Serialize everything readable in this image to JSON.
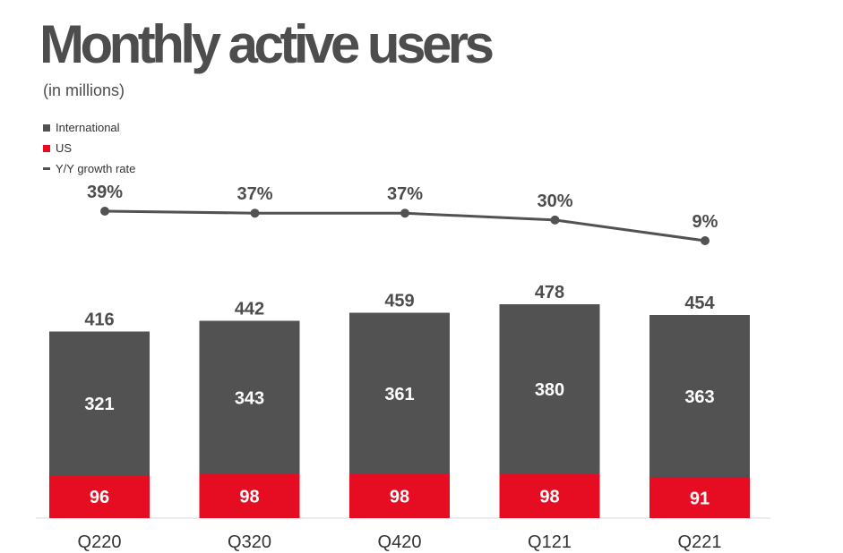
{
  "title": "Monthly active users",
  "subtitle": "(in millions)",
  "legend": {
    "international": "International",
    "us": "US",
    "growth": "Y/Y growth rate"
  },
  "colors": {
    "international": "#525252",
    "us": "#e60d23",
    "line": "#525252",
    "title": "#4d4d4d",
    "baseline": "#d9d9d9"
  },
  "chart_data": {
    "type": "bar",
    "stacked": true,
    "categories": [
      "Q220",
      "Q320",
      "Q420",
      "Q121",
      "Q221"
    ],
    "series": [
      {
        "name": "US",
        "values": [
          96,
          98,
          98,
          98,
          91
        ]
      },
      {
        "name": "International",
        "values": [
          321,
          343,
          361,
          380,
          363
        ]
      }
    ],
    "totals": [
      416,
      442,
      459,
      478,
      454
    ],
    "line_series": {
      "name": "Y/Y growth rate",
      "values": [
        39,
        37,
        37,
        30,
        9
      ],
      "labels": [
        "39%",
        "37%",
        "37%",
        "30%",
        "9%"
      ]
    },
    "legend_position": "top-left",
    "grid": false
  }
}
